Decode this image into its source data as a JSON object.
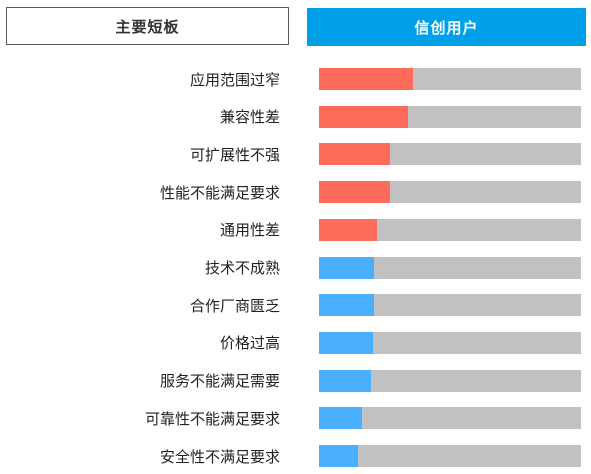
{
  "header": {
    "left_title": "主要短板",
    "right_title": "信创用户",
    "right_color": "#00a0e9"
  },
  "colors": {
    "track": "#c1c1c1",
    "highlight": "#ff6b5b",
    "normal": "#4bafff"
  },
  "chart_data": {
    "type": "bar",
    "orientation": "horizontal",
    "title": "信创用户",
    "categories": [
      "应用范围过窄",
      "兼容性差",
      "可扩展性不强",
      "性能不能满足要求",
      "通用性差",
      "技术不成熟",
      "合作厂商匮乏",
      "价格过高",
      "服务不能满足需要",
      "可靠性不能满足要求",
      "安全性不满足要求"
    ],
    "values": [
      36,
      34,
      27,
      27,
      22,
      21,
      21,
      20.5,
      20,
      16.5,
      15
    ],
    "highlight": [
      true,
      true,
      true,
      true,
      true,
      false,
      false,
      false,
      false,
      false,
      false
    ],
    "xlim": [
      0,
      100
    ],
    "grid": false,
    "legend": "none"
  }
}
